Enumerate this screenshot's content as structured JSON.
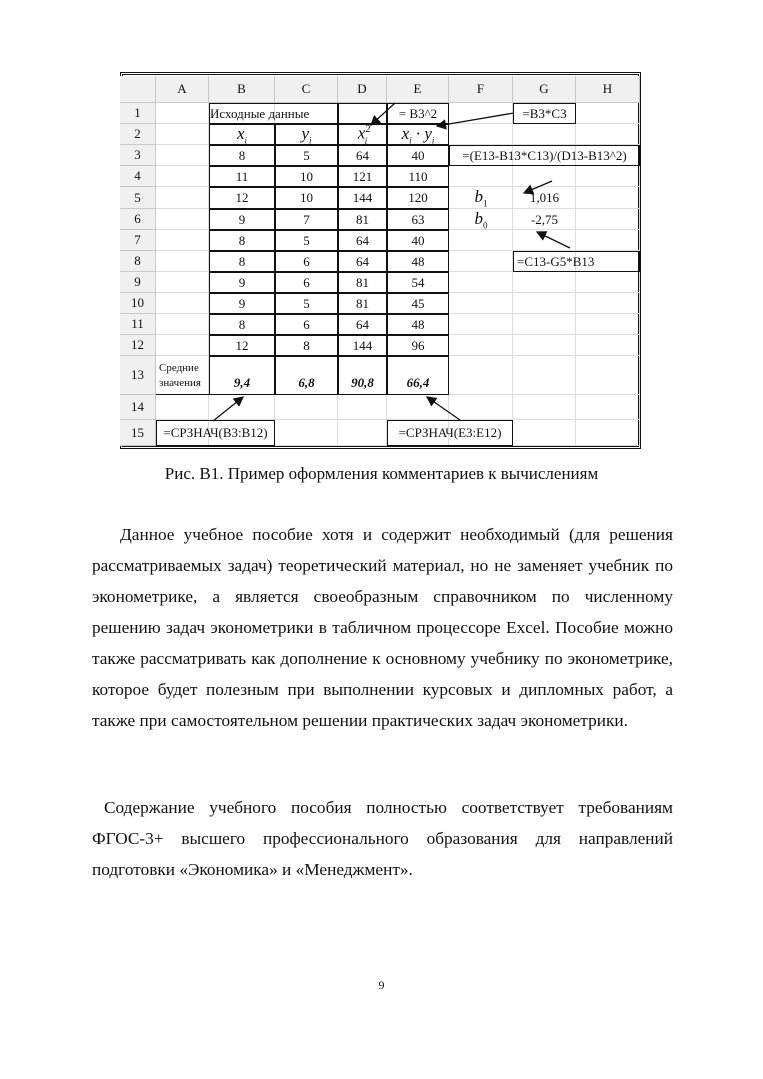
{
  "figure": {
    "columns": [
      "",
      "A",
      "B",
      "C",
      "D",
      "E",
      "F",
      "G",
      "H"
    ],
    "row_numbers": [
      "1",
      "2",
      "3",
      "4",
      "5",
      "6",
      "7",
      "8",
      "9",
      "10",
      "11",
      "12",
      "13",
      "14",
      "15"
    ],
    "header_title": "Исходные  данные",
    "col_headers": {
      "x": "x",
      "x_sub": "i",
      "y": "y",
      "y_sub": "i",
      "x2": "x",
      "x2_sub": "i",
      "x2_sup": "2",
      "xy": "x",
      "xy_sub1": "i",
      "xy_dot": " · ",
      "xy_y": "y",
      "xy_sub2": "i"
    },
    "data_rows": [
      [
        "8",
        "5",
        "64",
        "40"
      ],
      [
        "11",
        "10",
        "121",
        "110"
      ],
      [
        "12",
        "10",
        "144",
        "120"
      ],
      [
        "9",
        "7",
        "81",
        "63"
      ],
      [
        "8",
        "5",
        "64",
        "40"
      ],
      [
        "8",
        "6",
        "64",
        "48"
      ],
      [
        "9",
        "6",
        "81",
        "54"
      ],
      [
        "9",
        "5",
        "81",
        "45"
      ],
      [
        "8",
        "6",
        "64",
        "48"
      ],
      [
        "12",
        "8",
        "144",
        "96"
      ]
    ],
    "means_label": "Средние значения",
    "means": [
      "9,4",
      "6,8",
      "90,8",
      "66,4"
    ],
    "b1_label": "b",
    "b1_sub": "1",
    "b1_value": "1,016",
    "b0_label": "b",
    "b0_sub": "0",
    "b0_value": "-2,75",
    "formulas": {
      "e1": "= B3^2",
      "g1": "=B3*C3",
      "f3": "=(E13-B13*C13)/(D13-B13^2)",
      "g8": "=C13-G5*B13",
      "a15": "=СРЗНАЧ(B3:B12)",
      "e15": "=СРЗНАЧ(E3:E12)"
    }
  },
  "caption": "Рис. В1. Пример оформления комментариев к вычислениям",
  "paragraphs": [
    "Данное учебное пособие хотя и содержит необходимый (для решения рассматриваемых задач) теоретический материал, но не заменяет учебник по эконометрике, а является своеобразным справочником по численному решению задач эконометрики в табличном процессоре Excel. Пособие можно также рассматривать как дополнение к основному учебнику по эконометрике, которое будет полезным при выполнении курсовых и дипломных работ, а также при самостоятельном решении практических задач эконометрики.",
    "Содержание учебного пособия полностью соответствует требованиям ФГОС-3+ высшего профессионального образования для направлений подготовки «Экономика» и   «Менеджмент»."
  ],
  "page_number": "9"
}
